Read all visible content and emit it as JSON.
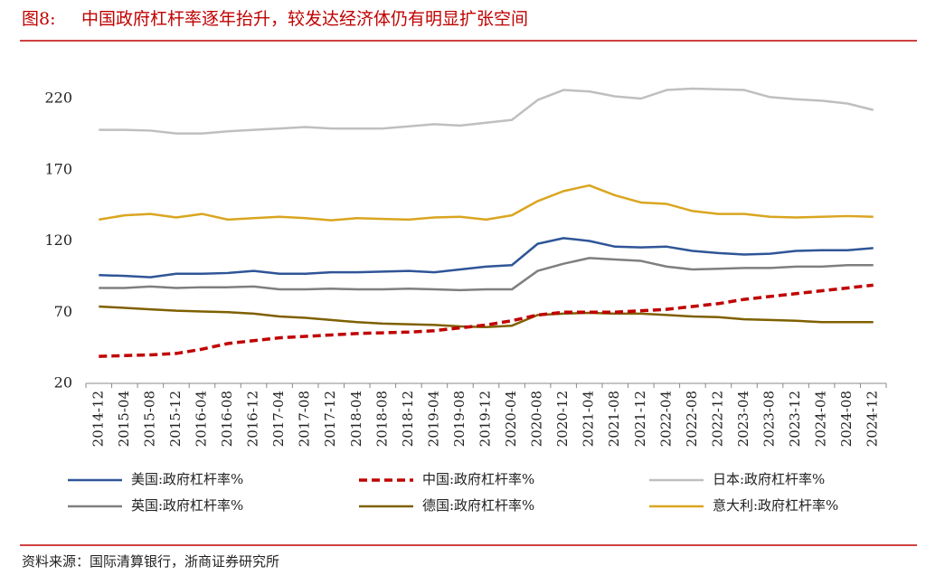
{
  "chart_data": {
    "type": "line",
    "figure_label": "图8:",
    "title": "中国政府杠杆率逐年抬升，较发达经济体仍有明显扩张空间",
    "source": "资料来源：国际清算银行，浙商证券研究所",
    "categories": [
      "2014-12",
      "2015-04",
      "2015-08",
      "2015-12",
      "2016-04",
      "2016-08",
      "2016-12",
      "2017-04",
      "2017-08",
      "2017-12",
      "2018-04",
      "2018-08",
      "2018-12",
      "2019-04",
      "2019-08",
      "2019-12",
      "2020-04",
      "2020-08",
      "2020-12",
      "2021-04",
      "2021-08",
      "2021-12",
      "2022-04",
      "2022-08",
      "2022-12",
      "2023-04",
      "2023-08",
      "2023-12",
      "2024-04",
      "2024-08",
      "2024-12"
    ],
    "series": [
      {
        "name": "美国:政府杠杆率%",
        "color": "#2f5597",
        "style": "solid",
        "values": [
          96,
          95.5,
          94.5,
          97,
          97,
          97.5,
          99,
          97,
          97,
          98,
          98,
          98.5,
          99,
          98,
          100,
          102,
          103,
          118,
          122,
          120,
          116,
          115.5,
          116,
          113,
          111.5,
          110.5,
          111,
          113,
          113.5,
          113.5,
          115
        ]
      },
      {
        "name": "中国:政府杠杆率%",
        "color": "#c00000",
        "style": "dashed",
        "values": [
          39,
          39.5,
          40,
          41,
          44,
          48,
          50,
          52,
          53,
          54,
          55,
          55.5,
          56,
          57,
          59,
          61,
          64,
          68,
          70,
          70,
          70,
          71,
          72,
          74,
          76,
          79,
          81,
          83,
          85,
          87,
          89
        ]
      },
      {
        "name": "日本:政府杠杆率%",
        "color": "#bfbfbf",
        "style": "solid",
        "values": [
          198,
          198,
          197.5,
          195.5,
          195.5,
          197,
          198,
          199,
          200,
          199,
          199,
          199,
          200.5,
          202,
          201,
          203,
          205,
          219,
          226,
          225,
          221.5,
          220,
          226,
          227,
          226.5,
          226,
          221,
          219.5,
          218.5,
          216.5,
          212
        ]
      },
      {
        "name": "英国:政府杠杆率%",
        "color": "#7f7f7f",
        "style": "solid",
        "values": [
          87,
          87,
          88,
          87,
          87.5,
          87.5,
          88,
          86,
          86,
          86.5,
          86,
          86,
          86.5,
          86,
          85.5,
          86,
          86,
          99,
          104,
          108,
          107,
          106,
          102,
          100,
          100.5,
          101,
          101,
          102,
          102,
          103,
          103
        ]
      },
      {
        "name": "德国:政府杠杆率%",
        "color": "#7f6000",
        "style": "solid",
        "values": [
          74,
          73,
          72,
          71,
          70.5,
          70,
          69,
          67,
          66,
          64.5,
          63,
          62,
          61.5,
          61,
          60,
          59.5,
          60.5,
          68,
          69,
          69.5,
          69,
          69,
          68,
          67,
          66.5,
          65,
          64.5,
          64,
          63,
          63,
          63
        ]
      },
      {
        "name": "意大利:政府杠杆率%",
        "color": "#daa520",
        "style": "solid",
        "values": [
          135,
          138,
          139,
          136.5,
          139,
          135,
          136,
          137,
          136,
          134.5,
          136,
          135.5,
          135,
          136.5,
          137,
          135,
          138,
          148,
          155,
          159,
          152,
          147,
          146,
          141,
          139,
          139,
          137,
          136.5,
          137,
          137.5,
          137
        ]
      }
    ],
    "ylim": [
      20,
      240
    ],
    "yticks": [
      20,
      70,
      120,
      170,
      220
    ],
    "grid": false
  }
}
